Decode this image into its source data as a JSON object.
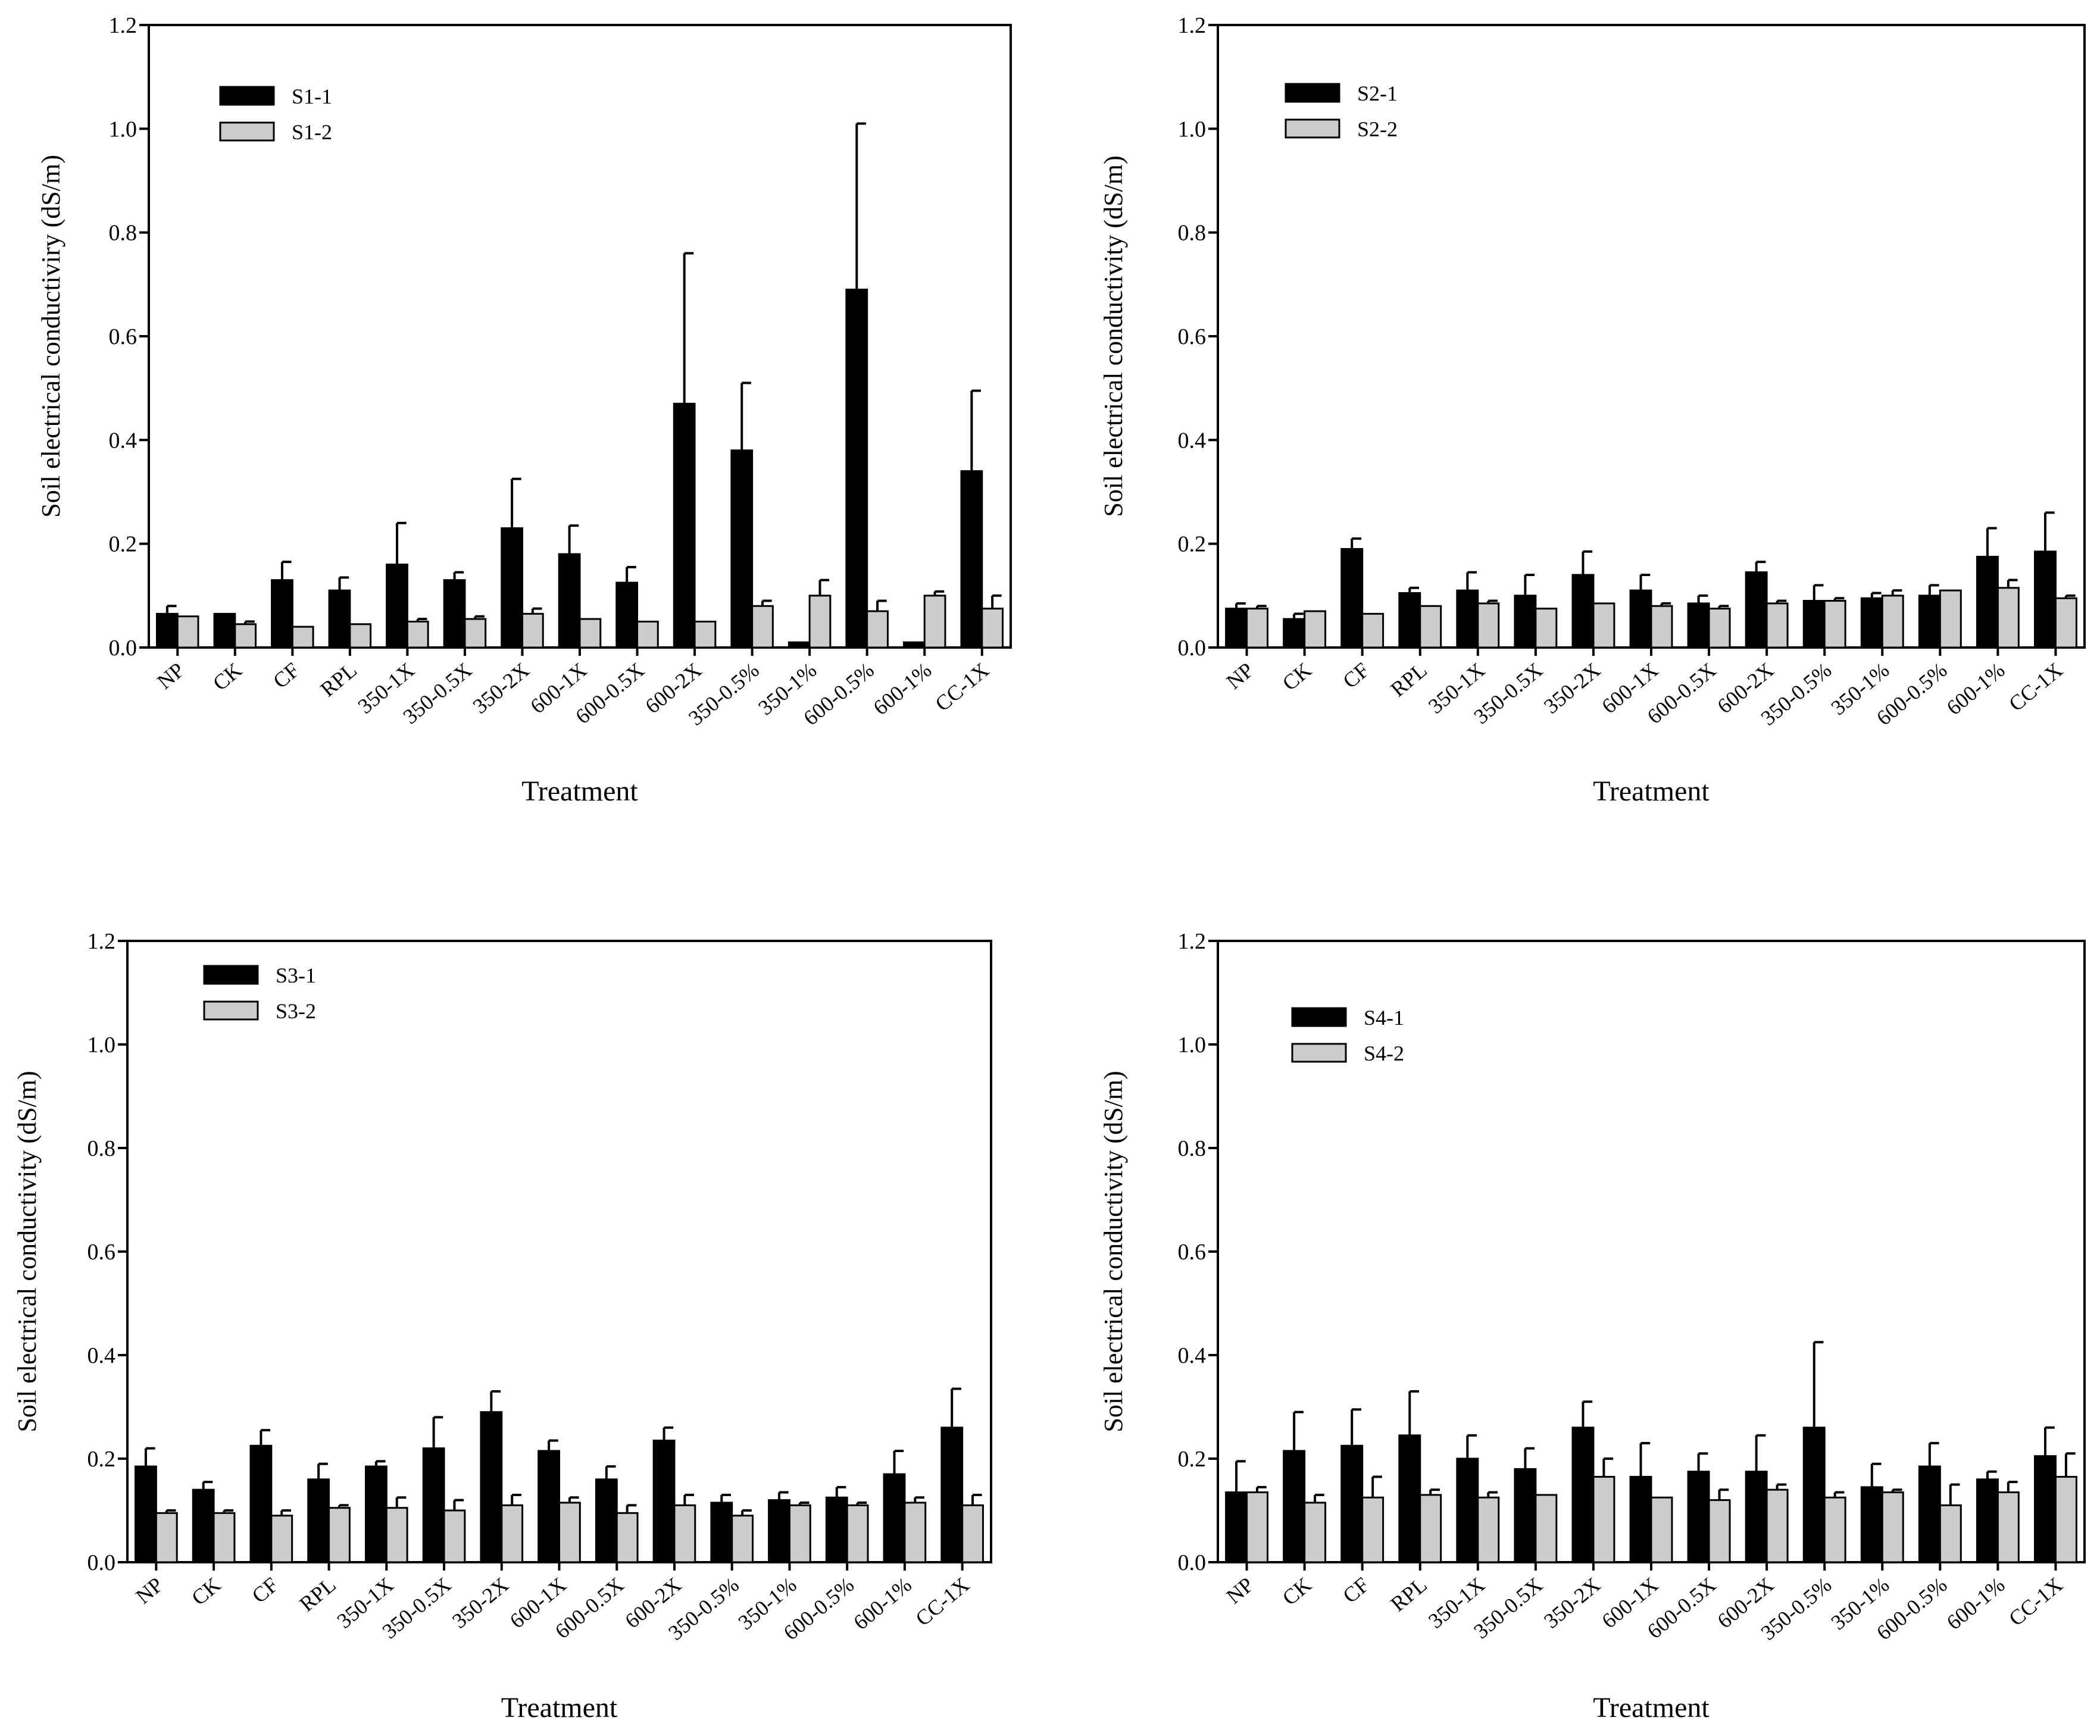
{
  "figure": {
    "y_ticks": [
      "0.0",
      "0.2",
      "0.4",
      "0.6",
      "0.8",
      "1.0",
      "1.2"
    ],
    "categories": [
      "NP",
      "CK",
      "CF",
      "RPL",
      "350-1X",
      "350-0.5X",
      "350-2X",
      "600-1X",
      "600-0.5X",
      "600-2X",
      "350-0.5%",
      "350-1%",
      "600-0.5%",
      "600-1%",
      "CC-1X"
    ],
    "colors": {
      "first": "#000000",
      "second": "#cccccc"
    }
  },
  "chart_data": [
    {
      "type": "bar",
      "title": "",
      "xlabel": "Treatment",
      "ylabel": "Soil electrical conductiviry (dS/m)",
      "ylim": [
        0,
        1.2
      ],
      "legend_position": "top-left",
      "categories": [
        "NP",
        "CK",
        "CF",
        "RPL",
        "350-1X",
        "350-0.5X",
        "350-2X",
        "600-1X",
        "600-0.5X",
        "600-2X",
        "350-0.5%",
        "350-1%",
        "600-0.5%",
        "600-1%",
        "CC-1X"
      ],
      "series": [
        {
          "name": "S1-1",
          "values": [
            0.065,
            0.065,
            0.13,
            0.11,
            0.16,
            0.13,
            0.23,
            0.18,
            0.125,
            0.47,
            0.38,
            0.01,
            0.69,
            0.01,
            0.34
          ],
          "errors": [
            0.015,
            0.0,
            0.035,
            0.025,
            0.08,
            0.015,
            0.095,
            0.055,
            0.03,
            0.29,
            0.13,
            0.0,
            0.32,
            0.0,
            0.155
          ]
        },
        {
          "name": "S1-2",
          "values": [
            0.06,
            0.045,
            0.04,
            0.045,
            0.05,
            0.055,
            0.065,
            0.055,
            0.05,
            0.05,
            0.08,
            0.1,
            0.07,
            0.1,
            0.075
          ],
          "errors": [
            0.0,
            0.005,
            0.0,
            0.0,
            0.005,
            0.005,
            0.01,
            0.0,
            0.0,
            0.0,
            0.01,
            0.03,
            0.02,
            0.008,
            0.025
          ]
        }
      ]
    },
    {
      "type": "bar",
      "title": "",
      "xlabel": "Treatment",
      "ylabel": "Soil electrical conductivity (dS/m)",
      "ylim": [
        0,
        1.2
      ],
      "legend_position": "top-left",
      "categories": [
        "NP",
        "CK",
        "CF",
        "RPL",
        "350-1X",
        "350-0.5X",
        "350-2X",
        "600-1X",
        "600-0.5X",
        "600-2X",
        "350-0.5%",
        "350-1%",
        "600-0.5%",
        "600-1%",
        "CC-1X"
      ],
      "series": [
        {
          "name": "S2-1",
          "values": [
            0.075,
            0.055,
            0.19,
            0.105,
            0.11,
            0.1,
            0.14,
            0.11,
            0.085,
            0.145,
            0.09,
            0.095,
            0.1,
            0.175,
            0.185
          ],
          "errors": [
            0.01,
            0.01,
            0.02,
            0.01,
            0.035,
            0.04,
            0.045,
            0.03,
            0.015,
            0.02,
            0.03,
            0.01,
            0.02,
            0.055,
            0.075
          ]
        },
        {
          "name": "S2-2",
          "values": [
            0.075,
            0.07,
            0.065,
            0.08,
            0.085,
            0.075,
            0.085,
            0.08,
            0.075,
            0.085,
            0.09,
            0.1,
            0.11,
            0.115,
            0.095
          ],
          "errors": [
            0.005,
            0.0,
            0.0,
            0.0,
            0.005,
            0.0,
            0.0,
            0.005,
            0.005,
            0.005,
            0.005,
            0.01,
            0.0,
            0.015,
            0.005
          ]
        }
      ]
    },
    {
      "type": "bar",
      "title": "",
      "xlabel": "Treatment",
      "ylabel": "Soil electrical conductivity (dS/m)",
      "ylim": [
        0,
        1.2
      ],
      "legend_position": "top-left",
      "categories": [
        "NP",
        "CK",
        "CF",
        "RPL",
        "350-1X",
        "350-0.5X",
        "350-2X",
        "600-1X",
        "600-0.5X",
        "600-2X",
        "350-0.5%",
        "350-1%",
        "600-0.5%",
        "600-1%",
        "CC-1X"
      ],
      "series": [
        {
          "name": "S3-1",
          "values": [
            0.185,
            0.14,
            0.225,
            0.16,
            0.185,
            0.22,
            0.29,
            0.215,
            0.16,
            0.235,
            0.115,
            0.12,
            0.125,
            0.17,
            0.26
          ],
          "errors": [
            0.035,
            0.015,
            0.03,
            0.03,
            0.01,
            0.06,
            0.04,
            0.02,
            0.025,
            0.025,
            0.015,
            0.015,
            0.02,
            0.045,
            0.075
          ]
        },
        {
          "name": "S3-2",
          "values": [
            0.095,
            0.095,
            0.09,
            0.105,
            0.105,
            0.1,
            0.11,
            0.115,
            0.095,
            0.11,
            0.09,
            0.11,
            0.11,
            0.115,
            0.11
          ],
          "errors": [
            0.005,
            0.005,
            0.01,
            0.005,
            0.02,
            0.02,
            0.02,
            0.01,
            0.015,
            0.02,
            0.01,
            0.005,
            0.005,
            0.01,
            0.02
          ]
        }
      ]
    },
    {
      "type": "bar",
      "title": "",
      "xlabel": "Treatment",
      "ylabel": "Soil electrical conductivity (dS/m)",
      "ylim": [
        0,
        1.2
      ],
      "legend_position": "top-left",
      "categories": [
        "NP",
        "CK",
        "CF",
        "RPL",
        "350-1X",
        "350-0.5X",
        "350-2X",
        "600-1X",
        "600-0.5X",
        "600-2X",
        "350-0.5%",
        "350-1%",
        "600-0.5%",
        "600-1%",
        "CC-1X"
      ],
      "series": [
        {
          "name": "S4-1",
          "values": [
            0.135,
            0.215,
            0.225,
            0.245,
            0.2,
            0.18,
            0.26,
            0.165,
            0.175,
            0.175,
            0.26,
            0.145,
            0.185,
            0.16,
            0.205
          ],
          "errors": [
            0.06,
            0.075,
            0.07,
            0.085,
            0.045,
            0.04,
            0.05,
            0.065,
            0.035,
            0.07,
            0.165,
            0.045,
            0.045,
            0.015,
            0.055
          ]
        },
        {
          "name": "S4-2",
          "values": [
            0.135,
            0.115,
            0.125,
            0.13,
            0.125,
            0.13,
            0.165,
            0.125,
            0.12,
            0.14,
            0.125,
            0.135,
            0.11,
            0.135,
            0.165
          ],
          "errors": [
            0.01,
            0.015,
            0.04,
            0.01,
            0.01,
            0.0,
            0.035,
            0.0,
            0.02,
            0.01,
            0.01,
            0.005,
            0.04,
            0.02,
            0.045
          ]
        }
      ]
    }
  ]
}
